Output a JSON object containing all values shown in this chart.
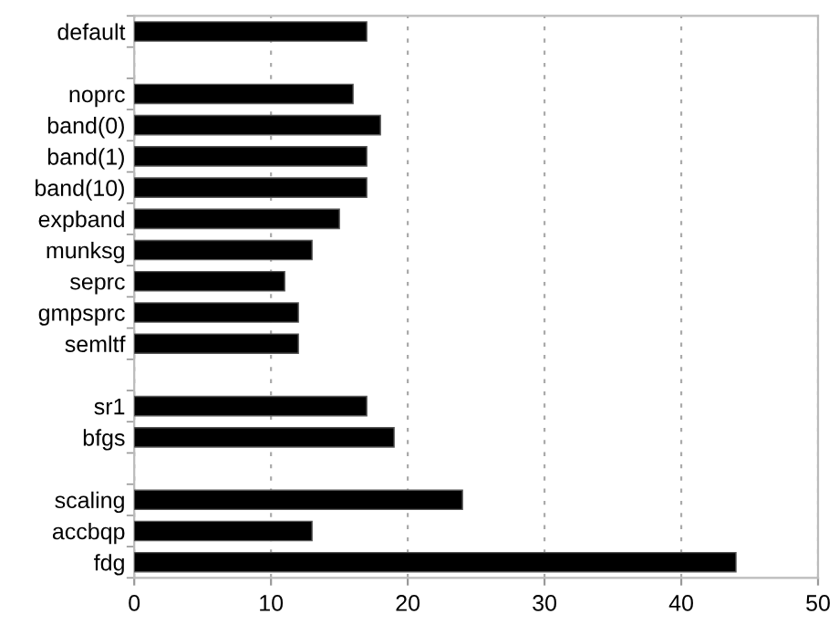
{
  "chart_data": {
    "type": "bar",
    "orientation": "horizontal",
    "categories": [
      "default",
      null,
      "noprc",
      "band(0)",
      "band(1)",
      "band(10)",
      "expband",
      "munksg",
      "seprc",
      "gmpsprc",
      "semltf",
      null,
      "sr1",
      "bfgs",
      null,
      "scaling",
      "accbqp",
      "fdg"
    ],
    "values": [
      17,
      null,
      16,
      18,
      17,
      17,
      15,
      13,
      11,
      12,
      12,
      null,
      17,
      19,
      null,
      24,
      13,
      44
    ],
    "color": "#000000",
    "xlim": [
      0,
      50
    ],
    "xticks": [
      0,
      10,
      20,
      30,
      40,
      50
    ],
    "grid": "x",
    "legend": false
  }
}
